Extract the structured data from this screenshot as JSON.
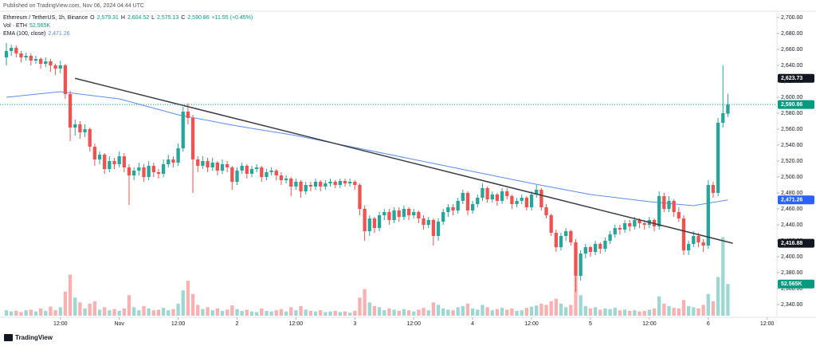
{
  "header": "Published on TradingView.com, Nov 06, 2024 04:44 UTC",
  "footer": "TradingView",
  "chart_data": {
    "type": "candlestick",
    "legend": {
      "symbol": "Ethereum / TetherUS, 1h, Binance",
      "ohlc": [
        {
          "key": "O",
          "label": "2,579.31"
        },
        {
          "key": "H",
          "label": "2,604.52"
        },
        {
          "key": "L",
          "label": "2,575.13"
        },
        {
          "key": "C",
          "label": "2,590.86"
        }
      ],
      "change": "+11.55 (+0.45%)",
      "volume": {
        "name": "Vol · ETH",
        "label": "52.565K"
      },
      "ema": {
        "name": "EMA (100, close)",
        "label": "2,471.26"
      }
    },
    "up_color": "#26a69a",
    "down_color": "#ef5350",
    "ohlc": [
      [
        2650,
        2668,
        2640,
        2658
      ],
      [
        2658,
        2666,
        2652,
        2662
      ],
      [
        2662,
        2665,
        2650,
        2655
      ],
      [
        2655,
        2658,
        2644,
        2650
      ],
      [
        2650,
        2656,
        2646,
        2652
      ],
      [
        2652,
        2655,
        2640,
        2646
      ],
      [
        2646,
        2652,
        2642,
        2648
      ],
      [
        2648,
        2650,
        2636,
        2642
      ],
      [
        2642,
        2650,
        2638,
        2645
      ],
      [
        2645,
        2648,
        2632,
        2640
      ],
      [
        2640,
        2642,
        2628,
        2636
      ],
      [
        2636,
        2646,
        2630,
        2640
      ],
      [
        2640,
        2642,
        2598,
        2604
      ],
      [
        2604,
        2608,
        2545,
        2562
      ],
      [
        2562,
        2572,
        2552,
        2566
      ],
      [
        2566,
        2570,
        2548,
        2556
      ],
      [
        2556,
        2566,
        2550,
        2560
      ],
      [
        2560,
        2562,
        2532,
        2538
      ],
      [
        2538,
        2542,
        2514,
        2522
      ],
      [
        2522,
        2532,
        2516,
        2528
      ],
      [
        2528,
        2530,
        2504,
        2510
      ],
      [
        2510,
        2526,
        2506,
        2520
      ],
      [
        2520,
        2524,
        2510,
        2516
      ],
      [
        2516,
        2532,
        2512,
        2526
      ],
      [
        2526,
        2530,
        2506,
        2512
      ],
      [
        2512,
        2516,
        2465,
        2502
      ],
      [
        2502,
        2512,
        2496,
        2508
      ],
      [
        2508,
        2518,
        2502,
        2512
      ],
      [
        2512,
        2516,
        2494,
        2500
      ],
      [
        2500,
        2520,
        2496,
        2514
      ],
      [
        2514,
        2518,
        2500,
        2506
      ],
      [
        2506,
        2510,
        2498,
        2504
      ],
      [
        2504,
        2522,
        2500,
        2516
      ],
      [
        2516,
        2528,
        2512,
        2522
      ],
      [
        2522,
        2526,
        2512,
        2518
      ],
      [
        2518,
        2542,
        2514,
        2536
      ],
      [
        2536,
        2588,
        2532,
        2582
      ],
      [
        2582,
        2592,
        2566,
        2574
      ],
      [
        2574,
        2578,
        2480,
        2522
      ],
      [
        2522,
        2526,
        2506,
        2514
      ],
      [
        2514,
        2526,
        2510,
        2520
      ],
      [
        2520,
        2524,
        2506,
        2512
      ],
      [
        2512,
        2524,
        2508,
        2518
      ],
      [
        2518,
        2520,
        2502,
        2508
      ],
      [
        2508,
        2522,
        2504,
        2516
      ],
      [
        2516,
        2520,
        2506,
        2512
      ],
      [
        2512,
        2514,
        2484,
        2494
      ],
      [
        2494,
        2512,
        2490,
        2508
      ],
      [
        2508,
        2518,
        2504,
        2514
      ],
      [
        2514,
        2516,
        2498,
        2504
      ],
      [
        2504,
        2514,
        2500,
        2510
      ],
      [
        2510,
        2516,
        2506,
        2512
      ],
      [
        2512,
        2514,
        2494,
        2500
      ],
      [
        2500,
        2510,
        2496,
        2506
      ],
      [
        2506,
        2512,
        2502,
        2508
      ],
      [
        2508,
        2510,
        2496,
        2502
      ],
      [
        2502,
        2506,
        2490,
        2496
      ],
      [
        2496,
        2502,
        2492,
        2498
      ],
      [
        2498,
        2500,
        2476,
        2488
      ],
      [
        2488,
        2498,
        2484,
        2494
      ],
      [
        2494,
        2496,
        2474,
        2482
      ],
      [
        2482,
        2494,
        2478,
        2490
      ],
      [
        2490,
        2494,
        2482,
        2488
      ],
      [
        2488,
        2498,
        2484,
        2494
      ],
      [
        2494,
        2496,
        2482,
        2488
      ],
      [
        2488,
        2496,
        2484,
        2492
      ],
      [
        2492,
        2498,
        2488,
        2494
      ],
      [
        2494,
        2496,
        2486,
        2490
      ],
      [
        2490,
        2498,
        2486,
        2495
      ],
      [
        2495,
        2498,
        2488,
        2492
      ],
      [
        2492,
        2498,
        2488,
        2494
      ],
      [
        2494,
        2496,
        2484,
        2490
      ],
      [
        2490,
        2492,
        2452,
        2460
      ],
      [
        2460,
        2464,
        2420,
        2432
      ],
      [
        2432,
        2452,
        2426,
        2448
      ],
      [
        2448,
        2450,
        2430,
        2436
      ],
      [
        2436,
        2456,
        2432,
        2452
      ],
      [
        2452,
        2460,
        2446,
        2456
      ],
      [
        2456,
        2460,
        2440,
        2446
      ],
      [
        2446,
        2462,
        2442,
        2458
      ],
      [
        2458,
        2462,
        2444,
        2450
      ],
      [
        2450,
        2464,
        2446,
        2460
      ],
      [
        2460,
        2462,
        2446,
        2452
      ],
      [
        2452,
        2460,
        2448,
        2456
      ],
      [
        2456,
        2458,
        2442,
        2448
      ],
      [
        2448,
        2452,
        2434,
        2440
      ],
      [
        2440,
        2450,
        2436,
        2446
      ],
      [
        2446,
        2448,
        2414,
        2426
      ],
      [
        2426,
        2448,
        2420,
        2444
      ],
      [
        2444,
        2460,
        2440,
        2456
      ],
      [
        2456,
        2466,
        2450,
        2462
      ],
      [
        2462,
        2466,
        2452,
        2458
      ],
      [
        2458,
        2474,
        2454,
        2470
      ],
      [
        2470,
        2484,
        2466,
        2480
      ],
      [
        2480,
        2482,
        2452,
        2458
      ],
      [
        2458,
        2470,
        2454,
        2466
      ],
      [
        2466,
        2478,
        2462,
        2474
      ],
      [
        2474,
        2492,
        2470,
        2486
      ],
      [
        2486,
        2488,
        2468,
        2472
      ],
      [
        2472,
        2482,
        2468,
        2478
      ],
      [
        2478,
        2480,
        2464,
        2470
      ],
      [
        2470,
        2486,
        2466,
        2482
      ],
      [
        2482,
        2486,
        2472,
        2476
      ],
      [
        2476,
        2478,
        2460,
        2466
      ],
      [
        2466,
        2474,
        2462,
        2470
      ],
      [
        2470,
        2478,
        2466,
        2474
      ],
      [
        2474,
        2476,
        2458,
        2462
      ],
      [
        2462,
        2482,
        2458,
        2478
      ],
      [
        2478,
        2490,
        2474,
        2484
      ],
      [
        2484,
        2486,
        2458,
        2462
      ],
      [
        2462,
        2466,
        2448,
        2452
      ],
      [
        2452,
        2454,
        2426,
        2430
      ],
      [
        2430,
        2434,
        2406,
        2412
      ],
      [
        2412,
        2430,
        2408,
        2426
      ],
      [
        2426,
        2436,
        2420,
        2432
      ],
      [
        2432,
        2434,
        2414,
        2418
      ],
      [
        2418,
        2422,
        2356,
        2376
      ],
      [
        2376,
        2408,
        2370,
        2404
      ],
      [
        2404,
        2416,
        2398,
        2412
      ],
      [
        2412,
        2414,
        2400,
        2406
      ],
      [
        2406,
        2420,
        2402,
        2416
      ],
      [
        2416,
        2418,
        2404,
        2410
      ],
      [
        2410,
        2424,
        2406,
        2420
      ],
      [
        2420,
        2432,
        2416,
        2428
      ],
      [
        2428,
        2440,
        2424,
        2436
      ],
      [
        2436,
        2440,
        2428,
        2434
      ],
      [
        2434,
        2446,
        2430,
        2442
      ],
      [
        2442,
        2446,
        2432,
        2438
      ],
      [
        2438,
        2450,
        2434,
        2446
      ],
      [
        2446,
        2448,
        2436,
        2442
      ],
      [
        2442,
        2446,
        2434,
        2440
      ],
      [
        2440,
        2450,
        2436,
        2446
      ],
      [
        2446,
        2448,
        2432,
        2438
      ],
      [
        2438,
        2482,
        2434,
        2476
      ],
      [
        2476,
        2480,
        2456,
        2460
      ],
      [
        2460,
        2476,
        2456,
        2470
      ],
      [
        2470,
        2472,
        2450,
        2456
      ],
      [
        2456,
        2462,
        2444,
        2448
      ],
      [
        2448,
        2452,
        2402,
        2408
      ],
      [
        2408,
        2420,
        2402,
        2416
      ],
      [
        2416,
        2432,
        2412,
        2426
      ],
      [
        2426,
        2430,
        2412,
        2418
      ],
      [
        2418,
        2422,
        2406,
        2414
      ],
      [
        2414,
        2496,
        2410,
        2490
      ],
      [
        2490,
        2494,
        2474,
        2480
      ],
      [
        2480,
        2574,
        2476,
        2568
      ],
      [
        2568,
        2640,
        2562,
        2580
      ],
      [
        2579.31,
        2604.52,
        2575.13,
        2590.86
      ]
    ],
    "volume": [
      9000,
      7000,
      8000,
      6000,
      9000,
      10000,
      7000,
      12000,
      8000,
      15000,
      9000,
      14000,
      40000,
      68000,
      30000,
      22000,
      12000,
      20000,
      24000,
      10000,
      14000,
      9000,
      11000,
      8000,
      12000,
      34000,
      14000,
      9000,
      16000,
      12000,
      9000,
      10000,
      13000,
      9000,
      11000,
      20000,
      42000,
      58000,
      36000,
      18000,
      11000,
      14000,
      9000,
      12000,
      8000,
      10000,
      17000,
      11000,
      8000,
      10000,
      7000,
      6000,
      12000,
      8000,
      7000,
      9000,
      11000,
      7000,
      14000,
      9000,
      16000,
      10000,
      8000,
      7000,
      9000,
      6000,
      7000,
      8000,
      6000,
      7000,
      5000,
      8000,
      30000,
      44000,
      22000,
      16000,
      14000,
      9000,
      12000,
      10000,
      8000,
      11000,
      9000,
      7000,
      10000,
      13000,
      9000,
      22000,
      18000,
      12000,
      10000,
      9000,
      14000,
      16000,
      20000,
      12000,
      10000,
      18000,
      14000,
      9000,
      11000,
      13000,
      10000,
      12000,
      8000,
      9000,
      13000,
      15000,
      17000,
      20000,
      18000,
      24000,
      28000,
      20000,
      14000,
      18000,
      65000,
      34000,
      16000,
      12000,
      14000,
      10000,
      12000,
      11000,
      13000,
      9000,
      10000,
      8000,
      9000,
      7000,
      8000,
      10000,
      12000,
      32000,
      20000,
      16000,
      13000,
      12000,
      26000,
      16000,
      14000,
      12000,
      18000,
      36000,
      24000,
      64000,
      130000,
      52565
    ],
    "vlim": [
      0,
      140000
    ],
    "ema": {
      "color": "#5b8def",
      "x": [
        0,
        11,
        23,
        35,
        47,
        59,
        71,
        83,
        95,
        107,
        119,
        131,
        140,
        147
      ],
      "values": [
        2600,
        2607,
        2598,
        2578,
        2564,
        2552,
        2537,
        2522,
        2507,
        2492,
        2478,
        2469,
        2464,
        2471.26
      ]
    },
    "trendline": {
      "color": "#3a3d47",
      "start": {
        "x": 14,
        "value": 2623.73
      },
      "end": {
        "x": 148,
        "value": 2416.88
      }
    },
    "price_tags": [
      {
        "value": 2623.73,
        "label": "2,623.73",
        "color": "#131722"
      },
      {
        "value": 2590.86,
        "label": "2,590.86",
        "color": "#089981",
        "line": "dotted"
      },
      {
        "value": 2471.26,
        "label": "2,471.26",
        "color": "#2962ff"
      },
      {
        "value": 2416.88,
        "label": "2,416.88",
        "color": "#131722"
      },
      {
        "value": 52565,
        "label": "52.565K",
        "color": "#089981",
        "axis": "volume"
      }
    ],
    "xlim": [
      -1.3,
      157
    ],
    "xticks": [
      {
        "value": 11,
        "label": "12:00"
      },
      {
        "value": 23,
        "label": "Nov"
      },
      {
        "value": 35,
        "label": "12:00"
      },
      {
        "value": 47,
        "label": "2"
      },
      {
        "value": 59,
        "label": "12:00"
      },
      {
        "value": 71,
        "label": "3"
      },
      {
        "value": 83,
        "label": "12:00"
      },
      {
        "value": 95,
        "label": "4"
      },
      {
        "value": 107,
        "label": "12:00"
      },
      {
        "value": 119,
        "label": "5"
      },
      {
        "value": 131,
        "label": "12:00"
      },
      {
        "value": 143,
        "label": "6"
      },
      {
        "value": 155,
        "label": "12:00"
      }
    ],
    "ylim": [
      2324,
      2708
    ],
    "yticks": [
      {
        "value": 2340,
        "label": "2,340.00"
      },
      {
        "value": 2360,
        "label": "2,360.00"
      },
      {
        "value": 2380,
        "label": "2,380.00"
      },
      {
        "value": 2400,
        "label": "2,400.00"
      },
      {
        "value": 2420,
        "label": "2,420.00"
      },
      {
        "value": 2440,
        "label": "2,440.00"
      },
      {
        "value": 2460,
        "label": "2,460.00"
      },
      {
        "value": 2480,
        "label": "2,480.00"
      },
      {
        "value": 2500,
        "label": "2,500.00"
      },
      {
        "value": 2520,
        "label": "2,520.00"
      },
      {
        "value": 2540,
        "label": "2,540.00"
      },
      {
        "value": 2560,
        "label": "2,560.00"
      },
      {
        "value": 2580,
        "label": "2,580.00"
      },
      {
        "value": 2600,
        "label": "2,600.00"
      },
      {
        "value": 2620,
        "label": "2,620.00"
      },
      {
        "value": 2640,
        "label": "2,640.00"
      },
      {
        "value": 2660,
        "label": "2,660.00"
      },
      {
        "value": 2680,
        "label": "2,680.00"
      },
      {
        "value": 2700,
        "label": "2,700.00"
      }
    ]
  }
}
